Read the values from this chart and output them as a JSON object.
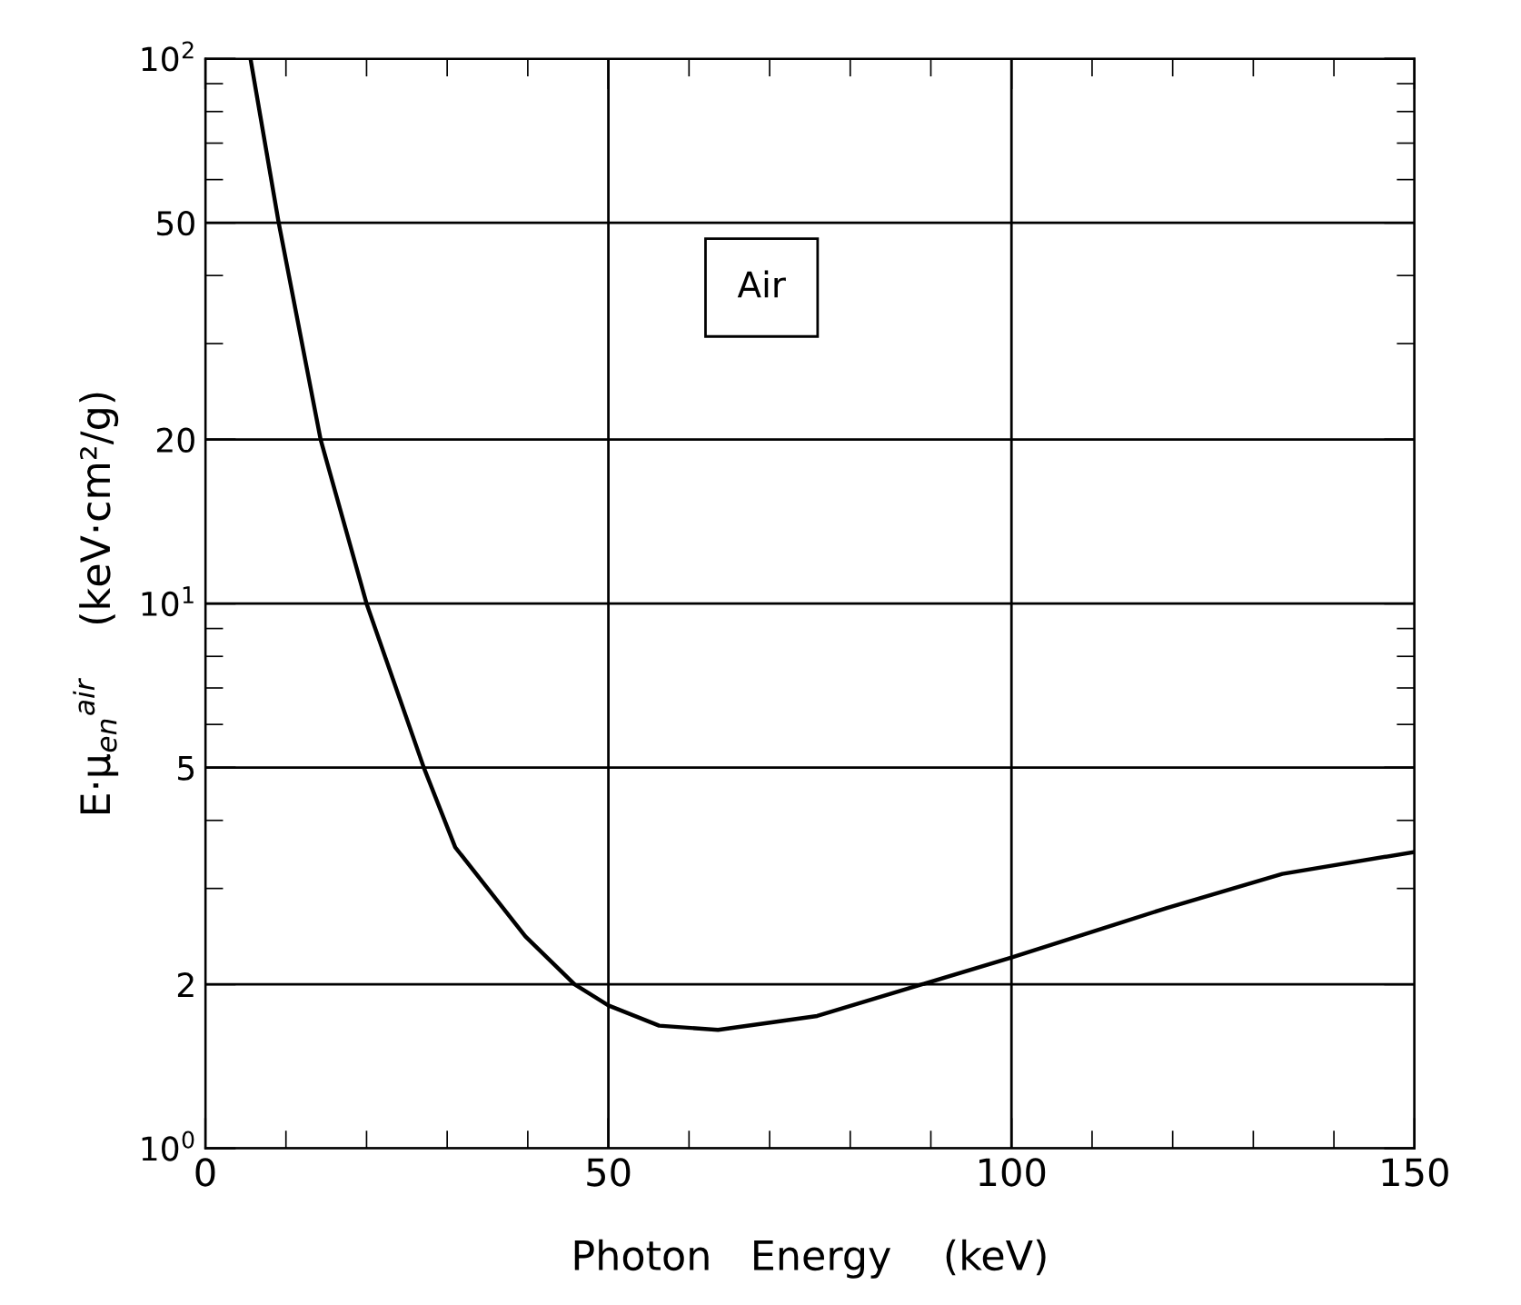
{
  "chart_data": {
    "type": "line",
    "xlabel": "Photon   Energy    (keV)",
    "ylabel": "E·μ$_{en}$$^{air}$    (keV·cm²/g)",
    "annotations": [
      "Air"
    ],
    "series": [
      {
        "color": "#000000",
        "x": [
          5.6,
          9.1,
          14.3,
          20.0,
          27.1,
          31.0,
          39.7,
          45.8,
          50,
          56.3,
          63.6,
          75.9,
          88.9,
          100,
          119.2,
          133.6,
          150
        ],
        "values": [
          100,
          50,
          20,
          10,
          5,
          3.57,
          2.45,
          2.0,
          1.83,
          1.68,
          1.65,
          1.75,
          2.0,
          2.24,
          2.76,
          3.19,
          3.5
        ]
      }
    ],
    "log": "y",
    "xlim": [
      0,
      150
    ],
    "ylim": [
      1,
      100
    ],
    "xticks": [
      0,
      50,
      100,
      150
    ],
    "yticks": [
      {
        "value": 1,
        "label": "10$^{0}$"
      },
      2,
      5,
      {
        "value": 10,
        "label": "10$^{1}$"
      },
      20,
      50,
      {
        "value": 100,
        "label": "10$^{2}$"
      }
    ],
    "grid": true,
    "marker": "none",
    "line_style": "solid"
  }
}
